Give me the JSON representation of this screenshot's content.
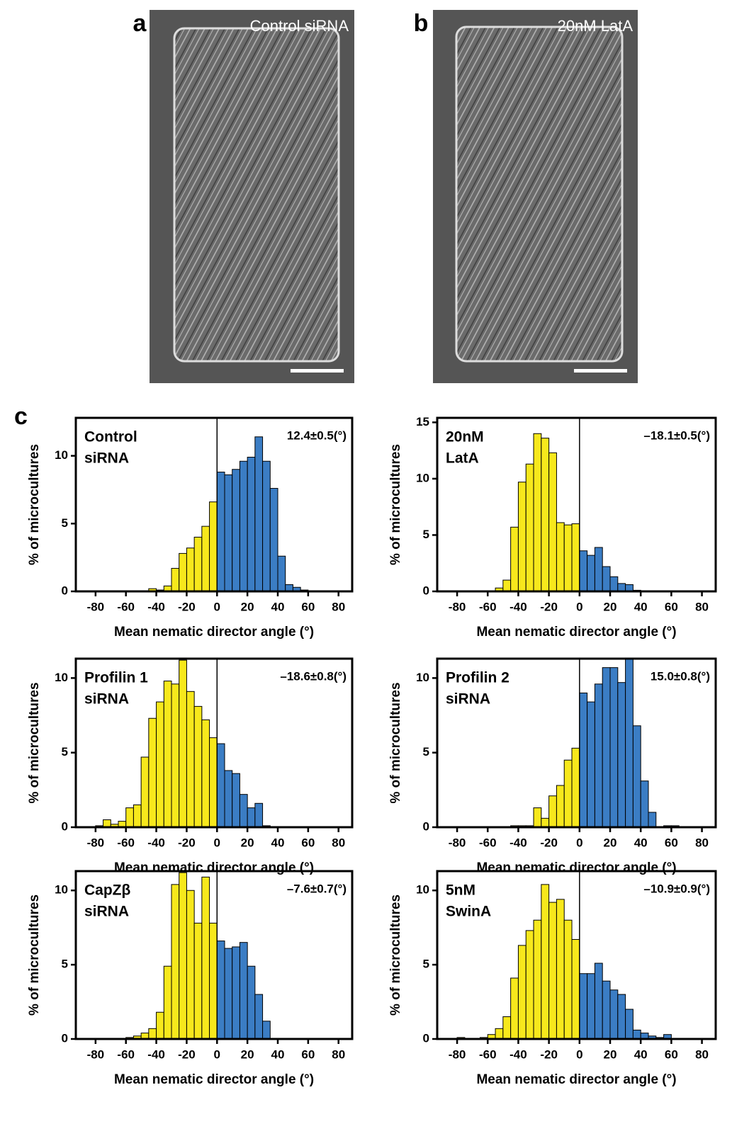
{
  "images": [
    {
      "letter": "a",
      "caption": "Control siRNA"
    },
    {
      "letter": "b",
      "caption": "20nM LatA"
    }
  ],
  "panel_label": "c",
  "chart_data": [
    {
      "type": "histogram",
      "label": [
        "Control",
        "siRNA"
      ],
      "stat": "12.4±0.5(°)",
      "xlabel": "Mean nematic director angle (°)",
      "ylabel": "% of microcultures",
      "bins": [
        -90,
        -85,
        -80,
        -75,
        -70,
        -65,
        -60,
        -55,
        -50,
        -45,
        -40,
        -35,
        -30,
        -25,
        -20,
        -15,
        -10,
        -5,
        0,
        5,
        10,
        15,
        20,
        25,
        30,
        35,
        40,
        45,
        50,
        55,
        60,
        65,
        70,
        75,
        80,
        85,
        90
      ],
      "values": [
        0,
        0,
        0,
        0,
        0,
        0,
        0,
        0,
        0,
        0.2,
        0.1,
        0.4,
        1.7,
        2.8,
        3.2,
        4.0,
        4.8,
        6.6,
        8.8,
        8.6,
        9.0,
        9.6,
        9.9,
        11.4,
        9.6,
        7.6,
        2.6,
        0.5,
        0.3,
        0.1,
        0,
        0,
        0,
        0,
        0,
        0
      ],
      "colors": {
        "negative": "#f7e81c",
        "positive": "#3b7dc4"
      },
      "xlim": [
        -93,
        89
      ],
      "xticks": [
        -80,
        -60,
        -40,
        -20,
        0,
        20,
        40,
        60,
        80
      ],
      "ylim": [
        0,
        12.8
      ],
      "yticks": [
        0,
        5,
        10
      ]
    },
    {
      "type": "histogram",
      "label": [
        "20nM",
        "LatA"
      ],
      "stat": "–18.1±0.5(°)",
      "xlabel": "Mean nematic director angle (°)",
      "ylabel": "% of microcultures",
      "bins": [
        -90,
        -85,
        -80,
        -75,
        -70,
        -65,
        -60,
        -55,
        -50,
        -45,
        -40,
        -35,
        -30,
        -25,
        -20,
        -15,
        -10,
        -5,
        0,
        5,
        10,
        15,
        20,
        25,
        30,
        35,
        40,
        45,
        50,
        55,
        60,
        65,
        70,
        75,
        80,
        85,
        90
      ],
      "values": [
        0,
        0,
        0,
        0,
        0,
        0,
        0,
        0.3,
        1.0,
        5.7,
        9.7,
        11.3,
        14.0,
        13.6,
        12.3,
        6.1,
        5.9,
        6.0,
        3.6,
        3.2,
        3.9,
        2.2,
        1.3,
        0.7,
        0.6,
        0.1,
        0.05,
        0,
        0,
        0,
        0,
        0,
        0,
        0,
        0,
        0
      ],
      "colors": {
        "negative": "#f7e81c",
        "positive": "#3b7dc4"
      },
      "xlim": [
        -93,
        89
      ],
      "xticks": [
        -80,
        -60,
        -40,
        -20,
        0,
        20,
        40,
        60,
        80
      ],
      "ylim": [
        0,
        15.4
      ],
      "yticks": [
        0,
        5,
        10,
        15
      ]
    },
    {
      "type": "histogram",
      "label": [
        "Profilin 1",
        "siRNA"
      ],
      "stat": "–18.6±0.8(°)",
      "xlabel": "Mean nematic director angle (°)",
      "ylabel": "% of microcultures",
      "bins": [
        -90,
        -85,
        -80,
        -75,
        -70,
        -65,
        -60,
        -55,
        -50,
        -45,
        -40,
        -35,
        -30,
        -25,
        -20,
        -15,
        -10,
        -5,
        0,
        5,
        10,
        15,
        20,
        25,
        30,
        35,
        40,
        45,
        50,
        55,
        60,
        65,
        70,
        75,
        80,
        85,
        90
      ],
      "values": [
        0,
        0,
        0.1,
        0.5,
        0.2,
        0.4,
        1.3,
        1.5,
        4.7,
        7.3,
        8.4,
        9.8,
        9.6,
        11.2,
        9.1,
        8.1,
        7.2,
        6.0,
        5.6,
        3.8,
        3.6,
        2.2,
        1.3,
        1.6,
        0.1,
        0,
        0,
        0,
        0,
        0,
        0,
        0,
        0,
        0,
        0,
        0
      ],
      "colors": {
        "negative": "#f7e81c",
        "positive": "#3b7dc4"
      },
      "xlim": [
        -93,
        89
      ],
      "xticks": [
        -80,
        -60,
        -40,
        -20,
        0,
        20,
        40,
        60,
        80
      ],
      "ylim": [
        0,
        11.3
      ],
      "yticks": [
        0,
        5,
        10
      ]
    },
    {
      "type": "histogram",
      "label": [
        "Profilin 2",
        "siRNA"
      ],
      "stat": "15.0±0.8(°)",
      "xlabel": "Mean nematic director angle (°)",
      "ylabel": "% of microcultures",
      "bins": [
        -90,
        -85,
        -80,
        -75,
        -70,
        -65,
        -60,
        -55,
        -50,
        -45,
        -40,
        -35,
        -30,
        -25,
        -20,
        -15,
        -10,
        -5,
        0,
        5,
        10,
        15,
        20,
        25,
        30,
        35,
        40,
        45,
        50,
        55,
        60,
        65,
        70,
        75,
        80,
        85,
        90
      ],
      "values": [
        0,
        0,
        0,
        0,
        0,
        0,
        0,
        0,
        0,
        0.1,
        0.1,
        0.1,
        1.3,
        0.6,
        2.1,
        2.8,
        4.5,
        5.3,
        9.0,
        8.4,
        9.6,
        10.7,
        10.7,
        9.7,
        11.3,
        6.8,
        3.1,
        1.0,
        0,
        0.1,
        0.1,
        0,
        0,
        0,
        0,
        0
      ],
      "colors": {
        "negative": "#f7e81c",
        "positive": "#3b7dc4"
      },
      "xlim": [
        -93,
        89
      ],
      "xticks": [
        -80,
        -60,
        -40,
        -20,
        0,
        20,
        40,
        60,
        80
      ],
      "ylim": [
        0,
        11.3
      ],
      "yticks": [
        0,
        5,
        10
      ]
    },
    {
      "type": "histogram",
      "label": [
        "CapZβ",
        "siRNA"
      ],
      "stat": "–7.6±0.7(°)",
      "xlabel": "Mean nematic director angle (°)",
      "ylabel": "% of microcultures",
      "bins": [
        -90,
        -85,
        -80,
        -75,
        -70,
        -65,
        -60,
        -55,
        -50,
        -45,
        -40,
        -35,
        -30,
        -25,
        -20,
        -15,
        -10,
        -5,
        0,
        5,
        10,
        15,
        20,
        25,
        30,
        35,
        40,
        45,
        50,
        55,
        60,
        65,
        70,
        75,
        80,
        85,
        90
      ],
      "values": [
        0,
        0,
        0,
        0,
        0,
        0,
        0.1,
        0.2,
        0.4,
        0.7,
        1.8,
        4.9,
        10.4,
        11.2,
        10.0,
        7.8,
        10.9,
        7.8,
        6.6,
        6.1,
        6.2,
        6.5,
        4.9,
        3.0,
        1.2,
        0,
        0,
        0,
        0,
        0,
        0,
        0,
        0,
        0,
        0,
        0
      ],
      "colors": {
        "negative": "#f7e81c",
        "positive": "#3b7dc4"
      },
      "xlim": [
        -93,
        89
      ],
      "xticks": [
        -80,
        -60,
        -40,
        -20,
        0,
        20,
        40,
        60,
        80
      ],
      "ylim": [
        0,
        11.3
      ],
      "yticks": [
        0,
        5,
        10
      ]
    },
    {
      "type": "histogram",
      "label": [
        "5nM",
        "SwinA"
      ],
      "stat": "–10.9±0.9(°)",
      "xlabel": "Mean nematic director angle (°)",
      "ylabel": "% of microcultures",
      "bins": [
        -90,
        -85,
        -80,
        -75,
        -70,
        -65,
        -60,
        -55,
        -50,
        -45,
        -40,
        -35,
        -30,
        -25,
        -20,
        -15,
        -10,
        -5,
        0,
        5,
        10,
        15,
        20,
        25,
        30,
        35,
        40,
        45,
        50,
        55,
        60,
        65,
        70,
        75,
        80,
        85,
        90
      ],
      "values": [
        0,
        0,
        0.1,
        0,
        0,
        0.1,
        0.3,
        0.7,
        1.5,
        4.1,
        6.3,
        7.3,
        8.0,
        10.4,
        9.2,
        9.4,
        8.0,
        6.7,
        4.4,
        4.4,
        5.1,
        3.9,
        3.3,
        3.0,
        2.0,
        0.6,
        0.4,
        0.2,
        0.1,
        0.3,
        0,
        0,
        0,
        0,
        0,
        0
      ],
      "colors": {
        "negative": "#f7e81c",
        "positive": "#3b7dc4"
      },
      "xlim": [
        -93,
        89
      ],
      "xticks": [
        -80,
        -60,
        -40,
        -20,
        0,
        20,
        40,
        60,
        80
      ],
      "ylim": [
        0,
        11.3
      ],
      "yticks": [
        0,
        5,
        10
      ]
    }
  ]
}
